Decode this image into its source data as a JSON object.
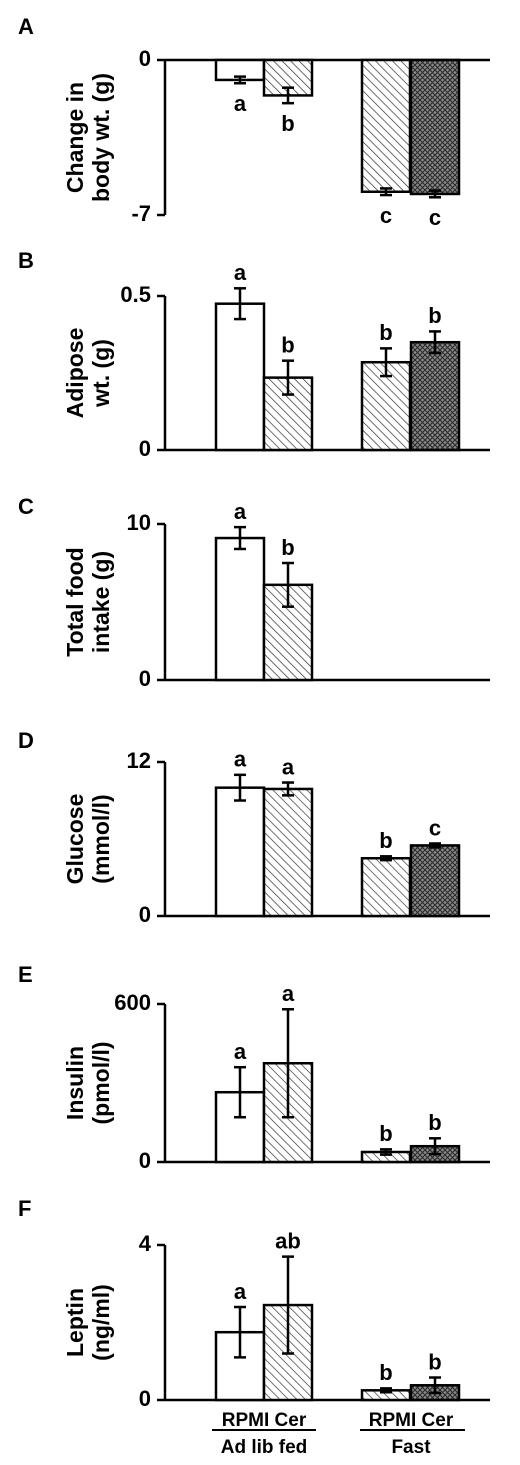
{
  "chart_data": [
    {
      "type": "bar",
      "panel": "A",
      "ylabel": [
        "Change in",
        "body wt. (g)"
      ],
      "ylim": [
        -7,
        0
      ],
      "yticks": [
        "0",
        "-7"
      ],
      "categories": [
        "RPMI Ad lib fed",
        "Cer Ad lib fed",
        "RPMI Fast",
        "Cer Fast"
      ],
      "values": [
        -0.9,
        -1.6,
        -5.95,
        -6.05
      ],
      "errors": [
        0.15,
        0.35,
        0.15,
        0.15
      ],
      "letters": [
        "a",
        "b",
        "c",
        "c"
      ]
    },
    {
      "type": "bar",
      "panel": "B",
      "ylabel": [
        "Adipose",
        "wt. (g)"
      ],
      "ylim": [
        0,
        0.5
      ],
      "yticks": [
        "0.5",
        "0"
      ],
      "categories": [
        "RPMI Ad lib fed",
        "Cer Ad lib fed",
        "RPMI Fast",
        "Cer Fast"
      ],
      "values": [
        0.475,
        0.235,
        0.285,
        0.35
      ],
      "errors": [
        0.05,
        0.055,
        0.045,
        0.035
      ],
      "letters": [
        "a",
        "b",
        "b",
        "b"
      ]
    },
    {
      "type": "bar",
      "panel": "C",
      "ylabel": [
        "Total food",
        "intake (g)"
      ],
      "ylim": [
        0,
        10
      ],
      "yticks": [
        "10",
        "0"
      ],
      "categories": [
        "RPMI Ad lib fed",
        "Cer Ad lib fed"
      ],
      "values": [
        9.1,
        6.1
      ],
      "errors": [
        0.7,
        1.4
      ],
      "letters": [
        "a",
        "b"
      ]
    },
    {
      "type": "bar",
      "panel": "D",
      "ylabel": [
        "Glucose",
        "(mmol/l)"
      ],
      "ylim": [
        0,
        12
      ],
      "yticks": [
        "12",
        "0"
      ],
      "categories": [
        "RPMI Ad lib fed",
        "Cer Ad lib fed",
        "RPMI Fast",
        "Cer Fast"
      ],
      "values": [
        10.0,
        9.9,
        4.5,
        5.5
      ],
      "errors": [
        1.0,
        0.5,
        0.15,
        0.15
      ],
      "letters": [
        "a",
        "a",
        "b",
        "c"
      ]
    },
    {
      "type": "bar",
      "panel": "E",
      "ylabel": [
        "Insulin",
        "(pmol/l)"
      ],
      "ylim": [
        0,
        600
      ],
      "yticks": [
        "600",
        "0"
      ],
      "categories": [
        "RPMI Ad lib fed",
        "Cer Ad lib fed",
        "RPMI Fast",
        "Cer Fast"
      ],
      "values": [
        265,
        375,
        38,
        60
      ],
      "errors": [
        95,
        205,
        10,
        30
      ],
      "letters": [
        "a",
        "a",
        "b",
        "b"
      ]
    },
    {
      "type": "bar",
      "panel": "F",
      "ylabel": [
        "Leptin",
        "(ng/ml)"
      ],
      "ylim": [
        0,
        4
      ],
      "yticks": [
        "4",
        "0"
      ],
      "categories": [
        "RPMI Ad lib fed",
        "Cer Ad lib fed",
        "RPMI Fast",
        "Cer Fast"
      ],
      "values": [
        1.75,
        2.45,
        0.25,
        0.38
      ],
      "errors": [
        0.65,
        1.25,
        0.05,
        0.2
      ],
      "letters": [
        "a",
        "ab",
        "b",
        "b"
      ]
    }
  ],
  "bar_styles": [
    "open",
    "hatched",
    "hatched",
    "crosshatched"
  ],
  "x_group_labels": [
    {
      "top": "RPMI Cer",
      "bottom": "Ad lib fed"
    },
    {
      "top": "RPMI Cer",
      "bottom": "Fast"
    }
  ]
}
